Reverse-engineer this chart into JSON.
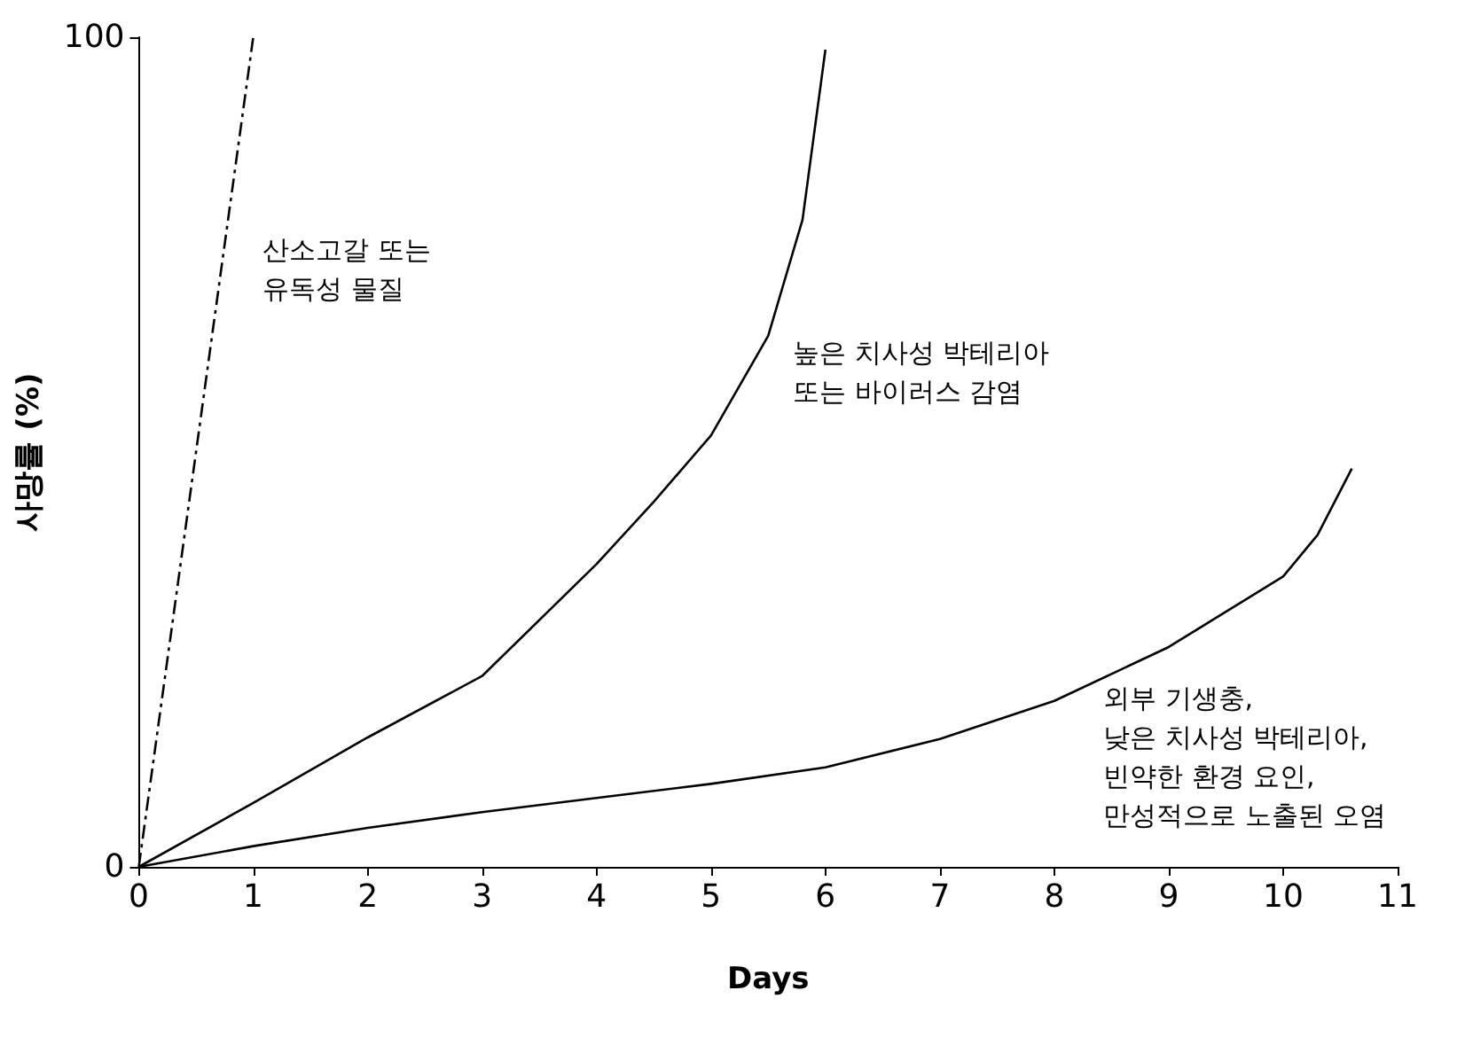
{
  "chart_data": {
    "type": "line",
    "xlabel": "Days",
    "ylabel": "사망률 (%)",
    "xlim": [
      0,
      11
    ],
    "xticks": [
      0,
      1,
      2,
      3,
      4,
      5,
      6,
      7,
      8,
      9,
      10,
      11
    ],
    "ylim": [
      0,
      100
    ],
    "yticks": [
      0,
      100
    ],
    "grid": false,
    "marker": "none",
    "series": [
      {
        "color": "#000000",
        "line_style": "dashed",
        "x": [
          0,
          1
        ],
        "values": [
          0,
          100
        ]
      },
      {
        "color": "#000000",
        "line_style": "solid",
        "x": [
          0,
          1,
          2,
          3,
          4,
          4.5,
          5,
          5.5,
          5.8,
          6
        ],
        "values": [
          0,
          7.7,
          15.6,
          23,
          36.5,
          44,
          52,
          64,
          78,
          98.5
        ]
      },
      {
        "color": "#000000",
        "line_style": "solid",
        "x": [
          0,
          1,
          2,
          3,
          4,
          5,
          6,
          7,
          8,
          9,
          10,
          10.3,
          10.6
        ],
        "values": [
          0,
          2.5,
          4.7,
          6.6,
          8.3,
          10,
          12,
          15.4,
          20,
          26.5,
          35,
          40,
          48
        ]
      }
    ],
    "annotations": [
      "산소고갈 또는\n유독성 물질",
      "높은 치사성 박테리아\n또는 바이러스 감염",
      "외부 기생충,\n낮은 치사성 박테리아,\n빈약한 환경 요인,\n만성적으로 노출된 오염"
    ]
  }
}
